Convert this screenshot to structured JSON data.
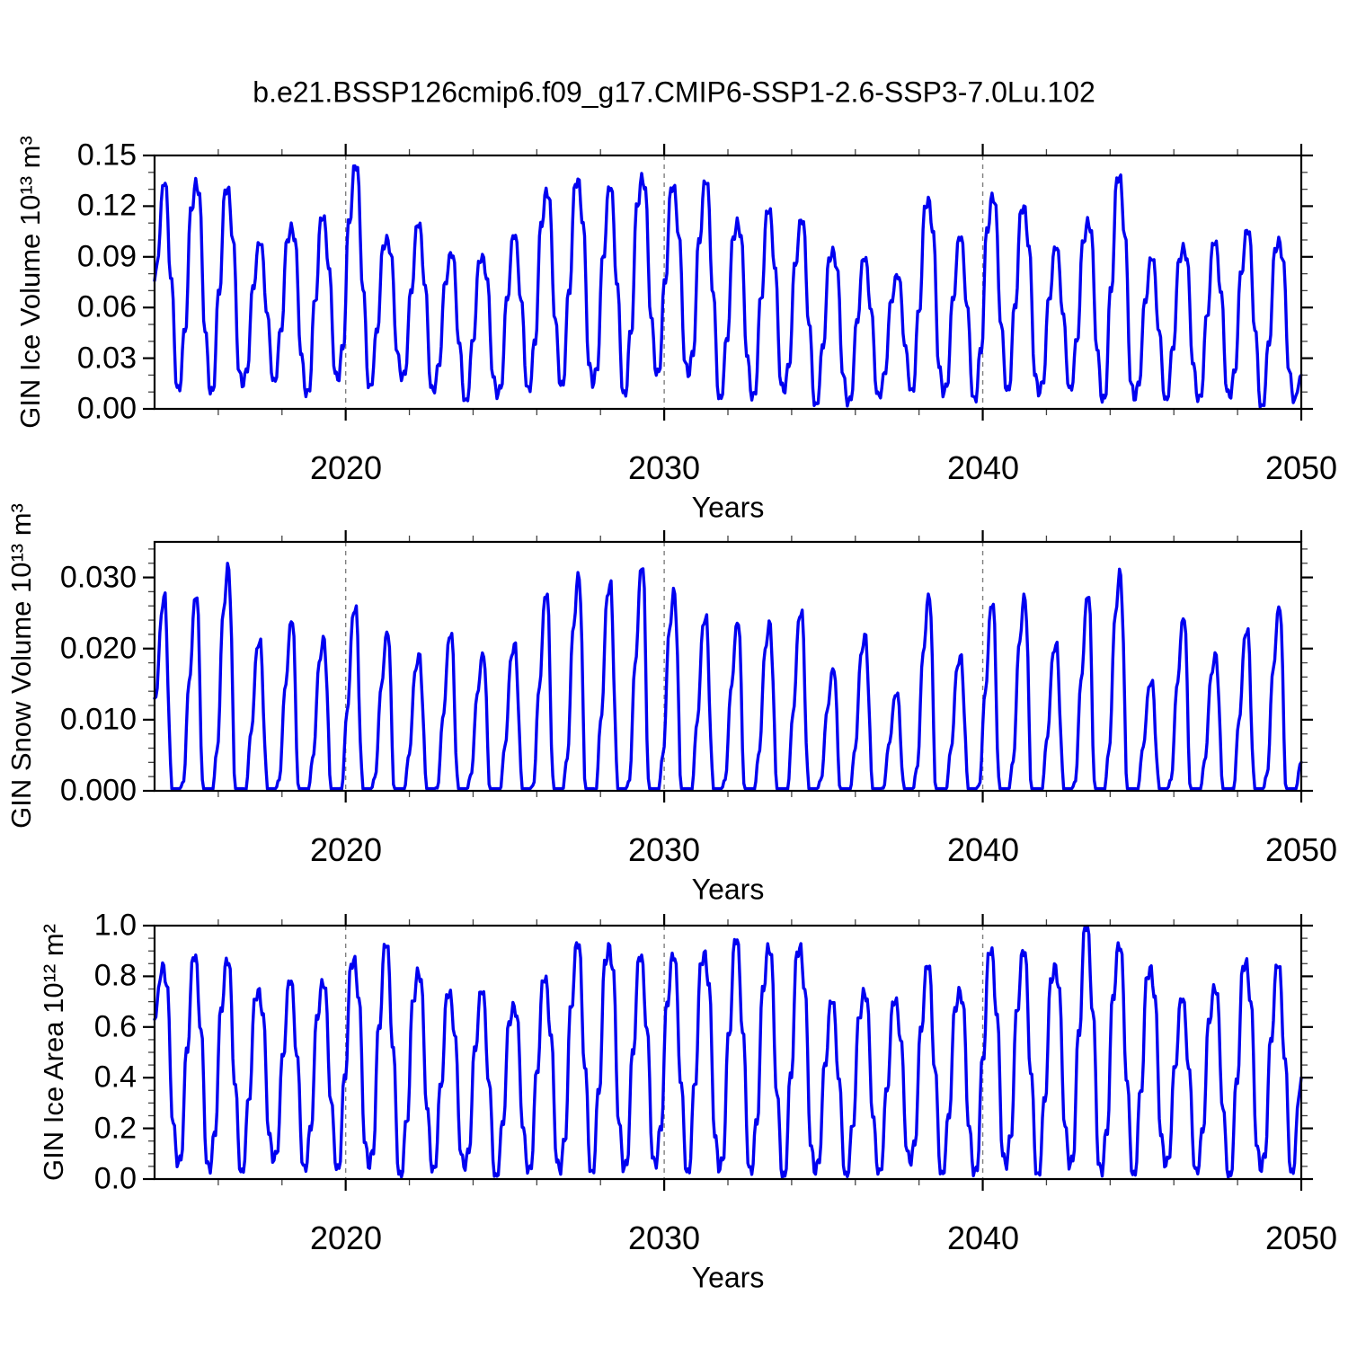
{
  "title": "b.e21.BSSP126cmip6.f09_g17.CMIP6-SSP1-2.6-SSP3-7.0Lu.102",
  "colors": {
    "line": "#0000f0",
    "axis": "#000000",
    "minor_tick": "#444444",
    "grid": "#808080",
    "background": "#ffffff"
  },
  "chart_data": {
    "type": "line",
    "title": "b.e21.BSSP126cmip6.f09_g17.CMIP6-SSP1-2.6-SSP3-7.0Lu.102",
    "xlabel": "Years",
    "x_range": [
      2014,
      2050
    ],
    "xticks": [
      2020,
      2030,
      2040,
      2050
    ],
    "xtick_labels": [
      "2020",
      "2030",
      "2040",
      "2050"
    ],
    "x_minor_step": 2,
    "dashed_gridlines_x": [
      2020,
      2030,
      2040
    ],
    "legend": "none",
    "grid": "dashed vertical lines at decade marks only",
    "description": "Three stacked panels of monthly seasonal-cycle time series, single blue line each; annual_max/annual_min give the seasonal envelope read from the plot.",
    "panels": [
      {
        "name": "gin-ice-volume",
        "ylabel": "GIN Ice Volume 10¹³ m³",
        "ylim": [
          0,
          0.15
        ],
        "yticks": [
          0.0,
          0.03,
          0.06,
          0.09,
          0.12,
          0.15
        ],
        "ytick_labels": [
          "0.15",
          "0.12",
          "0.09",
          "0.06",
          "0.03",
          "0.00"
        ],
        "y_minor_step": 0.01,
        "series": {
          "years": [
            2014,
            2015,
            2016,
            2017,
            2018,
            2019,
            2020,
            2021,
            2022,
            2023,
            2024,
            2025,
            2026,
            2027,
            2028,
            2029,
            2030,
            2031,
            2032,
            2033,
            2034,
            2035,
            2036,
            2037,
            2038,
            2039,
            2040,
            2041,
            2042,
            2043,
            2044,
            2045,
            2046,
            2047,
            2048,
            2049
          ],
          "annual_max": [
            0.132,
            0.136,
            0.131,
            0.097,
            0.11,
            0.113,
            0.143,
            0.103,
            0.108,
            0.092,
            0.092,
            0.101,
            0.13,
            0.137,
            0.129,
            0.139,
            0.132,
            0.133,
            0.113,
            0.117,
            0.111,
            0.096,
            0.088,
            0.079,
            0.126,
            0.1,
            0.127,
            0.121,
            0.094,
            0.113,
            0.138,
            0.088,
            0.098,
            0.098,
            0.105,
            0.102
          ],
          "annual_min": [
            0.013,
            0.01,
            0.012,
            0.018,
            0.008,
            0.016,
            0.015,
            0.017,
            0.01,
            0.006,
            0.006,
            0.012,
            0.015,
            0.012,
            0.01,
            0.021,
            0.018,
            0.008,
            0.006,
            0.009,
            0.004,
            0.002,
            0.007,
            0.012,
            0.007,
            0.006,
            0.012,
            0.007,
            0.013,
            0.005,
            0.004,
            0.007,
            0.005,
            0.006,
            0.003,
            0.004
          ],
          "start_value": 0.076,
          "end_value": 0.02,
          "peak_phase": 0.3,
          "min_phase": 0.76,
          "flat_min": false,
          "wiggle": 0.5
        }
      },
      {
        "name": "gin-snow-volume",
        "ylabel": "GIN Snow Volume 10¹³ m³",
        "ylim": [
          0,
          0.035
        ],
        "yticks": [
          0.0,
          0.01,
          0.02,
          0.03
        ],
        "ytick_labels": [
          "0.030",
          "0.020",
          "0.010",
          "0.000"
        ],
        "y_minor_step": 0.002,
        "series": {
          "years": [
            2014,
            2015,
            2016,
            2017,
            2018,
            2019,
            2020,
            2021,
            2022,
            2023,
            2024,
            2025,
            2026,
            2027,
            2028,
            2029,
            2030,
            2031,
            2032,
            2033,
            2034,
            2035,
            2036,
            2037,
            2038,
            2039,
            2040,
            2041,
            2042,
            2043,
            2044,
            2045,
            2046,
            2047,
            2048,
            2049
          ],
          "annual_max": [
            0.028,
            0.027,
            0.032,
            0.0213,
            0.0236,
            0.0219,
            0.0258,
            0.0221,
            0.0196,
            0.0219,
            0.0192,
            0.0211,
            0.0274,
            0.0305,
            0.0297,
            0.0311,
            0.0285,
            0.0247,
            0.0234,
            0.0241,
            0.0252,
            0.017,
            0.0224,
            0.0136,
            0.0274,
            0.0194,
            0.026,
            0.0275,
            0.021,
            0.0271,
            0.0312,
            0.0155,
            0.024,
            0.0196,
            0.0226,
            0.0256
          ],
          "annual_min": [
            0.0003,
            0.0003,
            0.0003,
            0.0003,
            0.0003,
            0.0003,
            0.0003,
            0.0003,
            0.0003,
            0.0003,
            0.0003,
            0.0003,
            0.0003,
            0.0003,
            0.0003,
            0.0003,
            0.0003,
            0.0003,
            0.0003,
            0.0003,
            0.0003,
            0.0003,
            0.0003,
            0.0003,
            0.0003,
            0.0003,
            0.0003,
            0.0003,
            0.0003,
            0.0003,
            0.0003,
            0.0003,
            0.0003,
            0.0003,
            0.0003,
            0.0003
          ],
          "start_value": 0.013,
          "end_value": 0.004,
          "peak_phase": 0.32,
          "min_phase": 0.68,
          "flat_min": true,
          "flat_half": 0.14,
          "wiggle": 0.35
        }
      },
      {
        "name": "gin-ice-area",
        "ylabel": "GIN Ice Area 10¹² m²",
        "ylim": [
          0,
          1.0
        ],
        "yticks": [
          0.0,
          0.2,
          0.4,
          0.6,
          0.8,
          1.0
        ],
        "ytick_labels": [
          "1.0",
          "0.8",
          "0.6",
          "0.4",
          "0.2",
          "0.0"
        ],
        "y_minor_step": 0.05,
        "series": {
          "years": [
            2014,
            2015,
            2016,
            2017,
            2018,
            2019,
            2020,
            2021,
            2022,
            2023,
            2024,
            2025,
            2026,
            2027,
            2028,
            2029,
            2030,
            2031,
            2032,
            2033,
            2034,
            2035,
            2036,
            2037,
            2038,
            2039,
            2040,
            2041,
            2042,
            2043,
            2044,
            2045,
            2046,
            2047,
            2048,
            2049
          ],
          "annual_max": [
            0.86,
            0.87,
            0.86,
            0.76,
            0.77,
            0.78,
            0.88,
            0.91,
            0.83,
            0.74,
            0.73,
            0.7,
            0.79,
            0.92,
            0.94,
            0.87,
            0.88,
            0.91,
            0.93,
            0.92,
            0.93,
            0.69,
            0.75,
            0.71,
            0.83,
            0.76,
            0.9,
            0.89,
            0.86,
            0.99,
            0.92,
            0.85,
            0.7,
            0.76,
            0.87,
            0.83
          ],
          "annual_min": [
            0.05,
            0.03,
            0.04,
            0.06,
            0.04,
            0.05,
            0.03,
            0.02,
            0.04,
            0.03,
            0.02,
            0.03,
            0.02,
            0.04,
            0.03,
            0.05,
            0.04,
            0.02,
            0.03,
            0.02,
            0.01,
            0.02,
            0.03,
            0.05,
            0.03,
            0.02,
            0.04,
            0.03,
            0.04,
            0.02,
            0.03,
            0.04,
            0.03,
            0.02,
            0.02,
            0.03
          ],
          "start_value": 0.63,
          "end_value": 0.4,
          "peak_phase": 0.27,
          "min_phase": 0.73,
          "flat_min": false,
          "wiggle": 0.5
        }
      }
    ]
  }
}
